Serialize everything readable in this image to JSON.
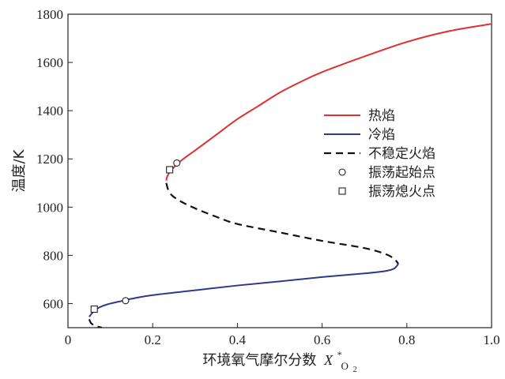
{
  "chart_data": {
    "type": "line",
    "xlabel": "环境氧气摩尔分数",
    "xlabel_symbol": "X",
    "xlabel_superscript": "*",
    "xlabel_subscript": "O",
    "xlabel_subsubscript": "2",
    "ylabel": "温度/K",
    "xlim": [
      0,
      1.0
    ],
    "ylim": [
      500,
      1800
    ],
    "x_ticks": [
      0,
      0.2,
      0.4,
      0.6,
      0.8,
      1.0
    ],
    "x_tick_labels": [
      "0",
      "0.2",
      "0.4",
      "0.6",
      "0.8",
      "1.0"
    ],
    "y_ticks": [
      600,
      800,
      1000,
      1200,
      1400,
      1600,
      1800
    ],
    "y_tick_labels": [
      "600",
      "800",
      "1000",
      "1200",
      "1400",
      "1600",
      "1800"
    ],
    "grid": false,
    "legend_position": "right",
    "series": [
      {
        "name": "热焰",
        "color": "#e03030",
        "style": "solid",
        "points": [
          [
            0.232,
            1110
          ],
          [
            0.234,
            1125
          ],
          [
            0.24,
            1145
          ],
          [
            0.25,
            1165
          ],
          [
            0.262,
            1185
          ],
          [
            0.28,
            1210
          ],
          [
            0.3,
            1235
          ],
          [
            0.35,
            1300
          ],
          [
            0.4,
            1365
          ],
          [
            0.45,
            1420
          ],
          [
            0.5,
            1475
          ],
          [
            0.55,
            1520
          ],
          [
            0.6,
            1560
          ],
          [
            0.7,
            1625
          ],
          [
            0.8,
            1685
          ],
          [
            0.9,
            1730
          ],
          [
            1.0,
            1760
          ]
        ]
      },
      {
        "name": "冷焰",
        "color": "#2e3a8c",
        "style": "solid",
        "points": [
          [
            0.05,
            545
          ],
          [
            0.058,
            562
          ],
          [
            0.07,
            580
          ],
          [
            0.09,
            595
          ],
          [
            0.12,
            608
          ],
          [
            0.15,
            620
          ],
          [
            0.2,
            635
          ],
          [
            0.3,
            655
          ],
          [
            0.4,
            675
          ],
          [
            0.5,
            692
          ],
          [
            0.6,
            710
          ],
          [
            0.7,
            725
          ],
          [
            0.75,
            735
          ],
          [
            0.77,
            745
          ],
          [
            0.78,
            765
          ]
        ]
      },
      {
        "name": "不稳定火焰",
        "color": "#111111",
        "style": "dashed",
        "points": [
          [
            0.232,
            1100
          ],
          [
            0.24,
            1060
          ],
          [
            0.26,
            1030
          ],
          [
            0.3,
            995
          ],
          [
            0.35,
            960
          ],
          [
            0.4,
            930
          ],
          [
            0.5,
            895
          ],
          [
            0.6,
            860
          ],
          [
            0.7,
            830
          ],
          [
            0.75,
            805
          ],
          [
            0.77,
            785
          ],
          [
            0.78,
            765
          ]
        ]
      },
      {
        "name": "不稳定火焰_lower",
        "color": "#111111",
        "style": "dashed",
        "points": [
          [
            0.05,
            535
          ],
          [
            0.055,
            518
          ],
          [
            0.065,
            508
          ],
          [
            0.08,
            500
          ]
        ]
      }
    ],
    "markers": [
      {
        "name": "振荡起始点",
        "shape": "circle",
        "points": [
          [
            0.257,
            1183
          ],
          [
            0.136,
            612
          ]
        ]
      },
      {
        "name": "振荡熄火点",
        "shape": "square",
        "points": [
          [
            0.24,
            1155
          ],
          [
            0.062,
            577
          ]
        ]
      }
    ],
    "legend_entries": [
      {
        "label": "热焰",
        "kind": "line",
        "color": "#e03030",
        "style": "solid"
      },
      {
        "label": "冷焰",
        "kind": "line",
        "color": "#2e3a8c",
        "style": "solid"
      },
      {
        "label": "不稳定火焰",
        "kind": "line",
        "color": "#111111",
        "style": "dashed"
      },
      {
        "label": "振荡起始点",
        "kind": "marker",
        "shape": "circle"
      },
      {
        "label": "振荡熄火点",
        "kind": "marker",
        "shape": "square"
      }
    ]
  }
}
